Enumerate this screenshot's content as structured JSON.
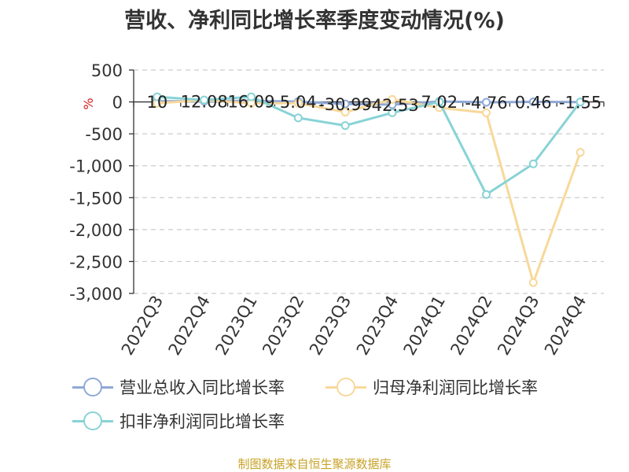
{
  "title": "营收、净利同比增长率季度变动情况(%)",
  "footer": "制图数据来自恒生聚源数据库",
  "chart_data": {
    "type": "line",
    "categories": [
      "2022Q3",
      "2022Q4",
      "2023Q1",
      "2023Q2",
      "2023Q3",
      "2023Q4",
      "2024Q1",
      "2024Q2",
      "2024Q3",
      "2024Q4"
    ],
    "ylim": [
      -3000,
      500
    ],
    "yticks": [
      500,
      0,
      -500,
      -1000,
      -1500,
      -2000,
      -2500,
      -3000
    ],
    "ytick_labels": [
      "500",
      "0",
      "-500",
      "-1,000",
      "-1,500",
      "-2,000",
      "-2,500",
      "-3,000"
    ],
    "yunit": "%",
    "grid": true,
    "legend_position": "bottom",
    "series": [
      {
        "name": "营业总收入同比增长率",
        "color": "#8fa9d6",
        "values": [
          10,
          12.08,
          16.09,
          5.04,
          -30.99,
          -42.53,
          7.02,
          -4.76,
          0.46,
          -1.55
        ],
        "labels": [
          "10",
          "12.08",
          "16.09",
          "5.04",
          "-30.99",
          "-42.53",
          "7.02",
          "-4.76",
          "0.46",
          "-1.55"
        ]
      },
      {
        "name": "归母净利润同比增长率",
        "color": "#f8d89a",
        "values": [
          -20,
          30,
          -20,
          -20,
          -160,
          40,
          -90,
          -170,
          -2830,
          -790
        ]
      },
      {
        "name": "扣非净利润同比增长率",
        "color": "#88d3d6",
        "values": [
          80,
          30,
          80,
          -250,
          -370,
          -170,
          0,
          -1450,
          -970,
          0
        ]
      }
    ]
  }
}
